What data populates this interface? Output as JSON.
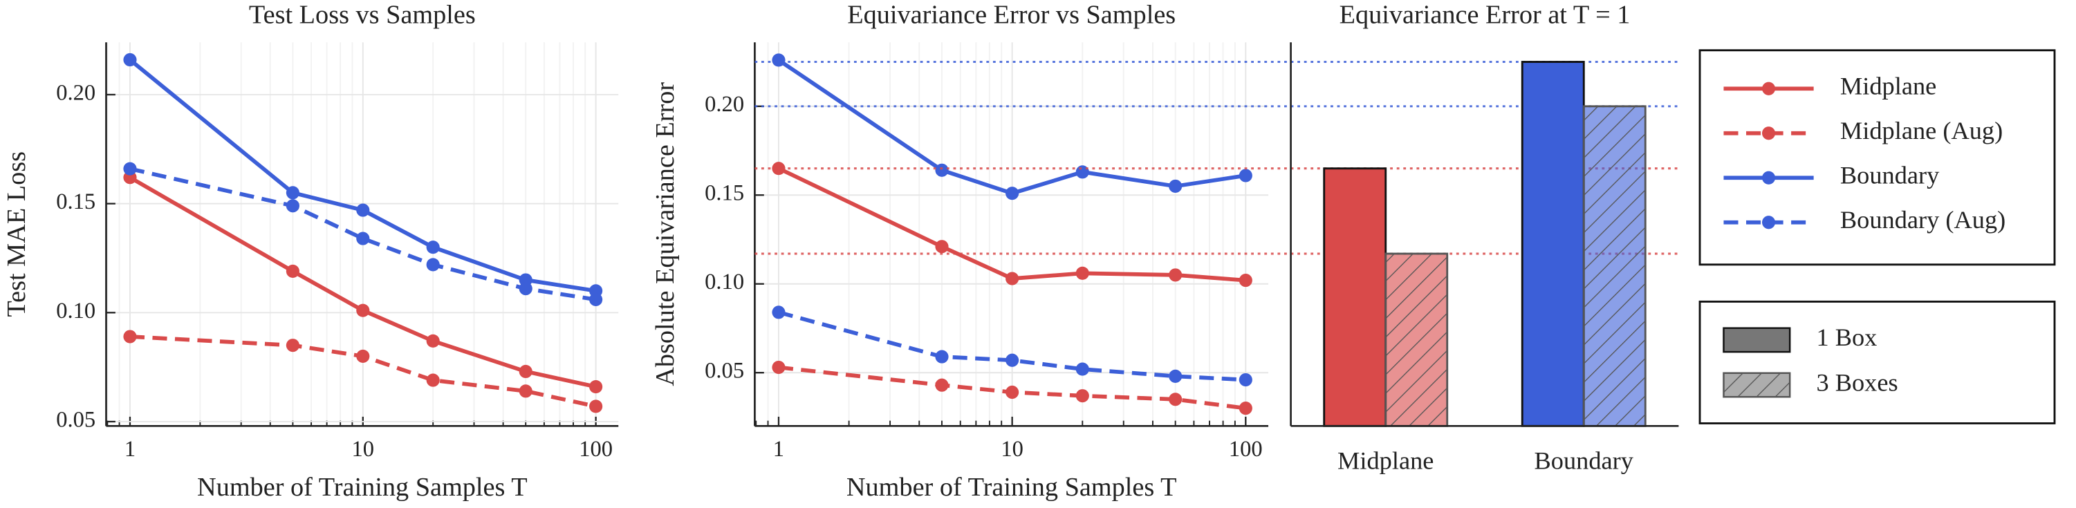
{
  "chart_data": [
    {
      "type": "line",
      "title": "Test Loss vs Samples",
      "x_label": "Number of Training Samples T",
      "y_label": "Test MAE Loss",
      "x": [
        1,
        5,
        10,
        20,
        50,
        100
      ],
      "log_x": true,
      "grid": true,
      "xlim": [
        0.79,
        125
      ],
      "xticks": [
        1,
        10,
        100
      ],
      "ylim": [
        0.048,
        0.224
      ],
      "yticks": [
        0.05,
        {
          "value": 0.1,
          "label": "0.10"
        },
        0.15,
        {
          "value": 0.2,
          "label": "0.20"
        }
      ],
      "legend": "outside-right",
      "series": [
        {
          "name": "Midplane",
          "color": "#d94a4a",
          "dashed": false,
          "values": [
            0.162,
            0.119,
            0.101,
            0.087,
            0.073,
            0.066
          ]
        },
        {
          "name": "Midplane (Aug)",
          "color": "#d94a4a",
          "dashed": true,
          "values": [
            0.089,
            0.085,
            0.08,
            0.069,
            0.064,
            0.057
          ]
        },
        {
          "name": "Boundary",
          "color": "#3c5fd8",
          "dashed": false,
          "values": [
            0.216,
            0.155,
            0.147,
            0.13,
            0.115,
            0.11
          ]
        },
        {
          "name": "Boundary (Aug)",
          "color": "#3c5fd8",
          "dashed": true,
          "values": [
            0.166,
            0.149,
            0.134,
            0.122,
            0.111,
            0.106
          ]
        }
      ]
    },
    {
      "type": "line",
      "title": "Equivariance Error vs Samples",
      "x_label": "Number of Training Samples T",
      "y_label": "Absolute Equivariance Error",
      "x": [
        1,
        5,
        10,
        20,
        50,
        100
      ],
      "log_x": true,
      "grid": true,
      "xlim": [
        0.79,
        125
      ],
      "xticks": [
        1,
        10,
        100
      ],
      "ylim": [
        0.02,
        0.236
      ],
      "yticks": [
        0.05,
        {
          "value": 0.1,
          "label": "0.10"
        },
        0.15,
        {
          "value": 0.2,
          "label": "0.20"
        }
      ],
      "series": [
        {
          "color": "#d94a4a",
          "dashed": false,
          "values": [
            0.165,
            0.121,
            0.103,
            0.106,
            0.105,
            0.102
          ]
        },
        {
          "color": "#d94a4a",
          "dashed": true,
          "values": [
            0.053,
            0.043,
            0.039,
            0.037,
            0.035,
            0.03
          ]
        },
        {
          "color": "#3c5fd8",
          "dashed": false,
          "values": [
            0.226,
            0.164,
            0.151,
            0.163,
            0.155,
            0.161
          ]
        },
        {
          "color": "#3c5fd8",
          "dashed": true,
          "values": [
            0.084,
            0.059,
            0.057,
            0.052,
            0.048,
            0.046
          ]
        }
      ]
    },
    {
      "type": "bar",
      "title": "Equivariance Error at T = 1",
      "categories": [
        "Midplane",
        "Boundary"
      ],
      "category_colors": [
        "#d94a4a",
        "#3c5fd8"
      ],
      "ylim": [
        0.02,
        0.236
      ],
      "reference_lines": true,
      "series": [
        {
          "name": "1 Box",
          "hatched": false,
          "values": [
            0.165,
            0.225
          ]
        },
        {
          "name": "3 Boxes",
          "hatched": true,
          "values": [
            0.117,
            0.2
          ]
        }
      ]
    }
  ]
}
